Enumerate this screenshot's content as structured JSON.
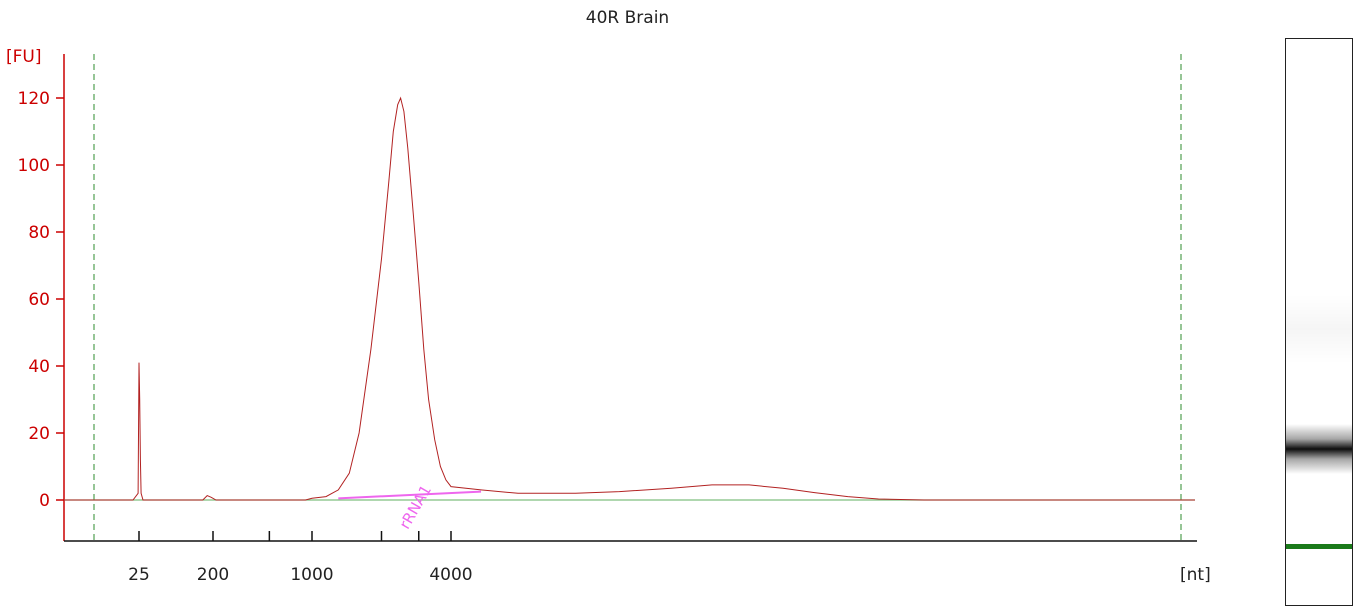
{
  "chart_data": {
    "type": "line",
    "title": "40R Brain",
    "ylabel": "[FU]",
    "xlabel": "[nt]",
    "ylim": [
      -12,
      130
    ],
    "y_ticks": [
      0,
      20,
      40,
      60,
      80,
      100,
      120
    ],
    "x_ticks": [
      "25",
      "200",
      "1000",
      "4000"
    ],
    "x_scale": "ladder-size (nt), non-linear",
    "colors": {
      "axis": "#cc0000",
      "trace": "#b22222",
      "baseline": "#7fbf7f",
      "region": "#ee66ee",
      "markers": "#2e8b2e",
      "gel_band": "#111111",
      "gel_marker": "#1a7a1a"
    },
    "peak_annotation": "rRNA1",
    "series": [
      {
        "points": [
          [
            5,
            0
          ],
          [
            22,
            0
          ],
          [
            24.5,
            2
          ],
          [
            25,
            41
          ],
          [
            25.5,
            30
          ],
          [
            26,
            12
          ],
          [
            26.5,
            2
          ],
          [
            28,
            0
          ],
          [
            150,
            0
          ],
          [
            170,
            1.3
          ],
          [
            190,
            0.8
          ],
          [
            210,
            0
          ],
          [
            900,
            0
          ],
          [
            1000,
            0.5
          ],
          [
            1150,
            1
          ],
          [
            1300,
            3
          ],
          [
            1450,
            8
          ],
          [
            1600,
            20
          ],
          [
            1800,
            45
          ],
          [
            2000,
            72
          ],
          [
            2150,
            95
          ],
          [
            2250,
            110
          ],
          [
            2350,
            118
          ],
          [
            2420,
            120
          ],
          [
            2500,
            116
          ],
          [
            2600,
            105
          ],
          [
            2750,
            85
          ],
          [
            2900,
            65
          ],
          [
            3050,
            45
          ],
          [
            3200,
            30
          ],
          [
            3400,
            18
          ],
          [
            3600,
            10
          ],
          [
            3800,
            6
          ],
          [
            4000,
            4
          ],
          [
            4300,
            3
          ],
          [
            4700,
            2
          ],
          [
            5400,
            2
          ],
          [
            6000,
            2.5
          ],
          [
            6800,
            3.5
          ],
          [
            7500,
            4.5
          ],
          [
            8200,
            4.5
          ],
          [
            8900,
            3.5
          ],
          [
            9600,
            2.2
          ],
          [
            10400,
            1
          ],
          [
            11200,
            0.3
          ],
          [
            12500,
            0
          ],
          [
            18000,
            0
          ],
          [
            24000,
            0
          ]
        ]
      }
    ],
    "region": {
      "label": "rRNA1",
      "x_start": 1300,
      "x_end": 4300,
      "y_start": 0.5,
      "y_end": 2.5
    }
  }
}
